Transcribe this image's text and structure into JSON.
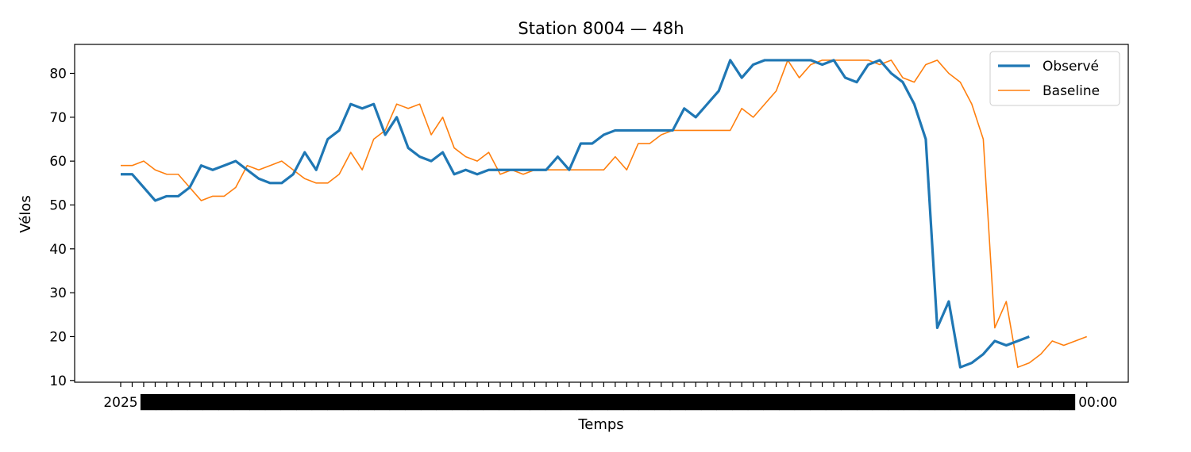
{
  "chart_data": {
    "type": "line",
    "title": "Station 8004 — 48h",
    "xlabel": "Temps",
    "ylabel": "Vélos",
    "ylim": [
      9.6,
      86.6
    ],
    "yticks": [
      10,
      20,
      30,
      40,
      50,
      60,
      70,
      80
    ],
    "x_tick_label_note": "overlapping timestamp labels (illegible)",
    "legend": "top-right",
    "grid": false,
    "series": [
      {
        "name": "Observé",
        "color": "#1f77b4",
        "values": [
          57,
          57,
          54,
          51,
          52,
          52,
          54,
          59,
          58,
          59,
          60,
          58,
          56,
          55,
          55,
          57,
          62,
          58,
          65,
          67,
          73,
          72,
          73,
          66,
          70,
          63,
          61,
          60,
          62,
          57,
          58,
          57,
          58,
          58,
          58,
          58,
          58,
          58,
          61,
          58,
          64,
          64,
          66,
          67,
          67,
          67,
          67,
          67,
          67,
          72,
          70,
          73,
          76,
          83,
          79,
          82,
          83,
          83,
          83,
          83,
          83,
          82,
          83,
          79,
          78,
          82,
          83,
          80,
          78,
          73,
          65,
          22,
          28,
          13,
          14,
          16,
          19,
          18,
          19,
          20
        ]
      },
      {
        "name": "Baseline",
        "color": "#ff7f0e",
        "values": [
          59,
          59,
          60,
          58,
          57,
          57,
          54,
          51,
          52,
          52,
          54,
          59,
          58,
          59,
          60,
          58,
          56,
          55,
          55,
          57,
          62,
          58,
          65,
          67,
          73,
          72,
          73,
          66,
          70,
          63,
          61,
          60,
          62,
          57,
          58,
          57,
          58,
          58,
          58,
          58,
          58,
          58,
          58,
          61,
          58,
          64,
          64,
          66,
          67,
          67,
          67,
          67,
          67,
          67,
          72,
          70,
          73,
          76,
          83,
          79,
          82,
          83,
          83,
          83,
          83,
          83,
          82,
          83,
          79,
          78,
          82,
          83,
          80,
          78,
          73,
          65,
          22,
          28,
          13,
          14,
          16,
          19,
          18,
          19,
          20
        ]
      }
    ],
    "x_first_label": "2025",
    "x_last_label": "00:00"
  }
}
